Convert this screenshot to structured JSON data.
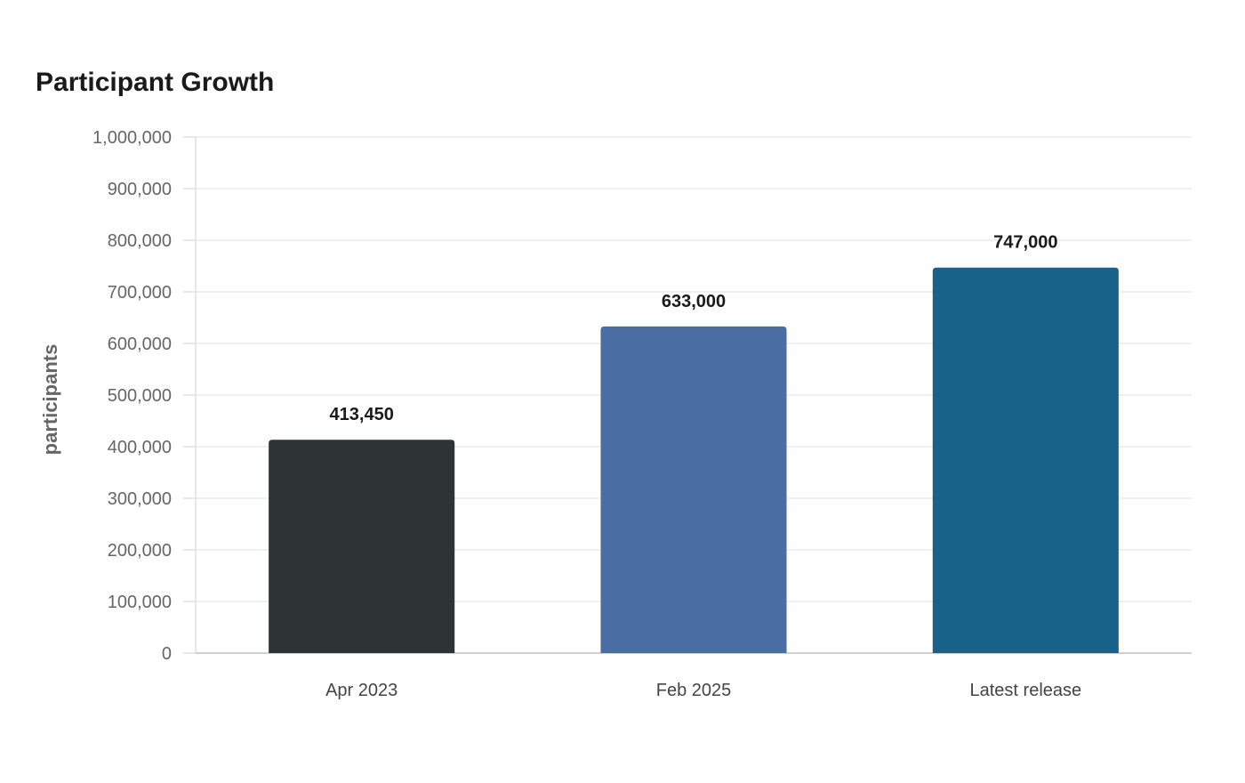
{
  "chart_data": {
    "type": "bar",
    "title": "Participant Growth",
    "xlabel": "",
    "ylabel": "participants",
    "categories": [
      "Apr 2023",
      "Feb 2025",
      "Latest release"
    ],
    "values": [
      413450,
      633000,
      747000
    ],
    "value_labels": [
      "413,450",
      "633,000",
      "747,000"
    ],
    "bar_colors": [
      "#2e3436",
      "#4a6da3",
      "#186189"
    ],
    "ylim": [
      0,
      1000000
    ],
    "yticks": [
      0,
      100000,
      200000,
      300000,
      400000,
      500000,
      600000,
      700000,
      800000,
      900000,
      1000000
    ],
    "ytick_labels": [
      "0",
      "100,000",
      "200,000",
      "300,000",
      "400,000",
      "500,000",
      "600,000",
      "700,000",
      "800,000",
      "900,000",
      "1,000,000"
    ],
    "grid": true,
    "legend": "none"
  }
}
